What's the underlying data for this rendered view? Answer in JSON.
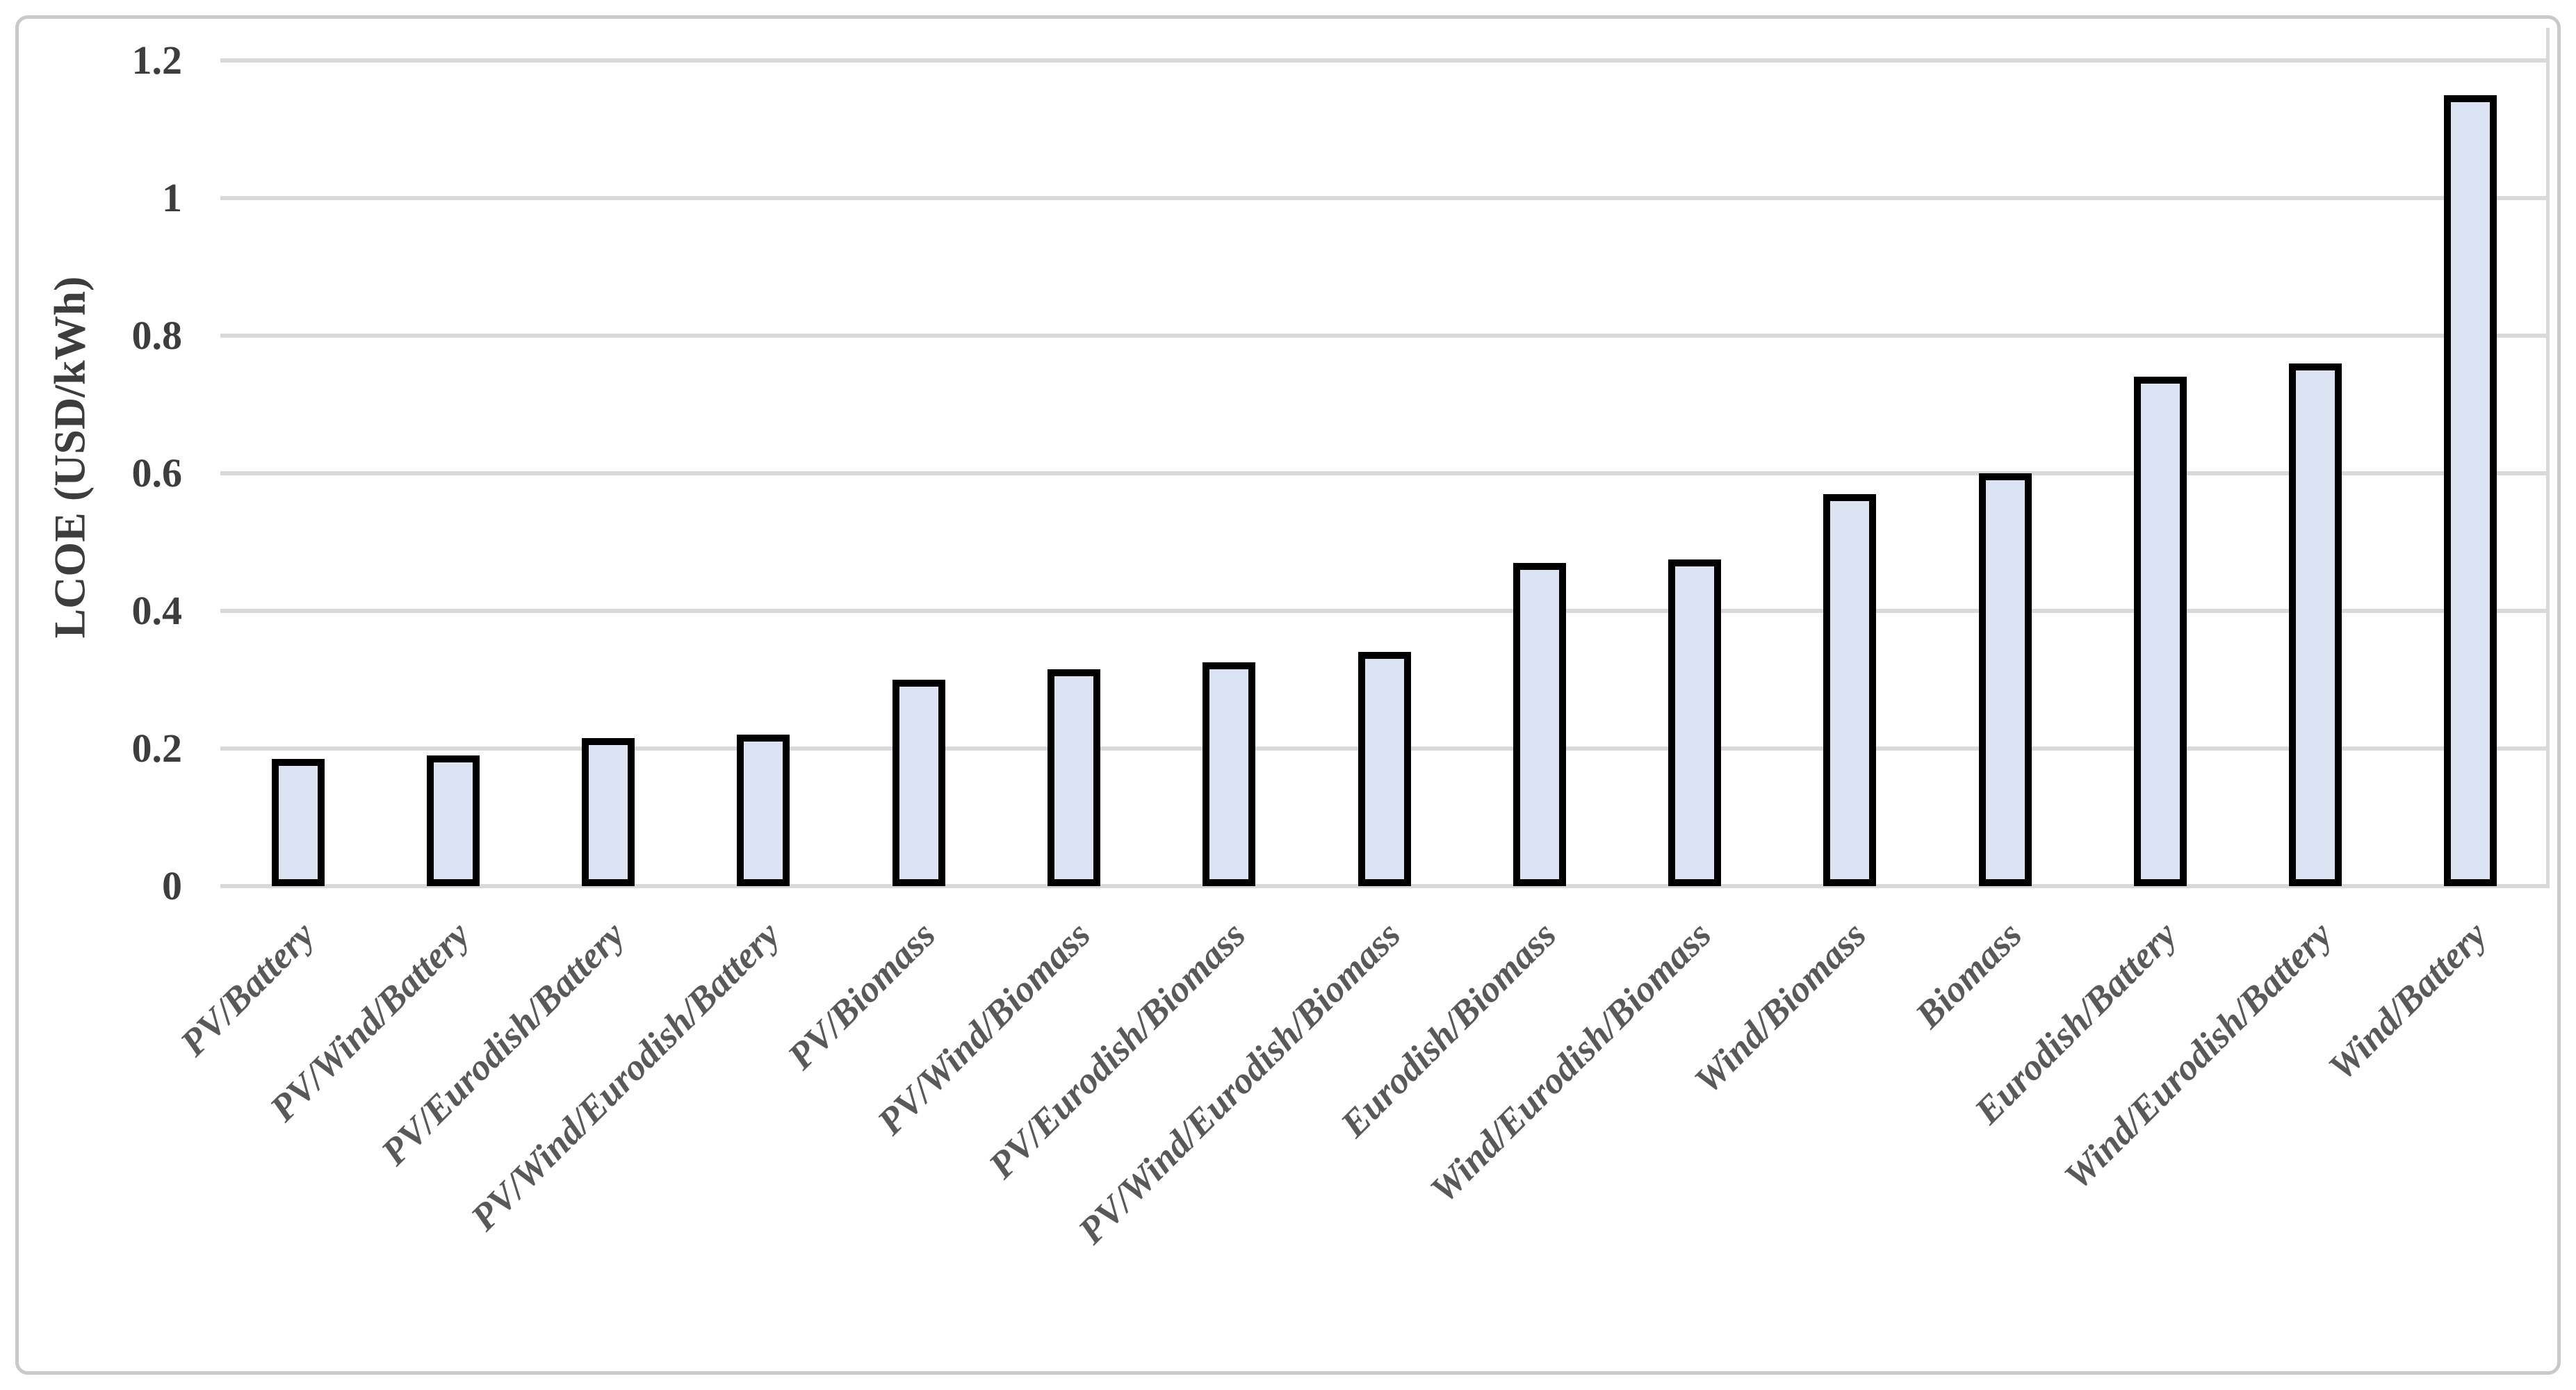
{
  "chart_data": {
    "type": "bar",
    "title": "",
    "xlabel": "",
    "ylabel": "LCOE (USD/kWh)",
    "categories": [
      "PV/Battery",
      "PV/Wind/Battery",
      "PV/Eurodish/Battery",
      "PV/Wind/Eurodish/Battery",
      "PV/Biomass",
      "PV/Wind/Biomass",
      "PV/Eurodish/Biomass",
      "PV/Wind/Eurodish/Biomass",
      "Eurodish/Biomass",
      "Wind/Eurodish/Biomass",
      "Wind/Biomass",
      "Biomass",
      "Eurodish/Battery",
      "Wind/Eurodish/Battery",
      "Wind/Battery"
    ],
    "values": [
      0.185,
      0.19,
      0.215,
      0.22,
      0.3,
      0.315,
      0.325,
      0.34,
      0.47,
      0.475,
      0.57,
      0.6,
      0.74,
      0.76,
      1.15
    ],
    "ylim": [
      0,
      1.25
    ],
    "yticks": [
      0,
      0.2,
      0.4,
      0.6,
      0.8,
      1,
      1.2
    ],
    "ytick_labels": [
      "0",
      "0.2",
      "0.4",
      "0.6",
      "0.8",
      "1",
      "1.2"
    ],
    "grid": "horizontal",
    "legend_position": "none",
    "bar_fill_color": "#dce3f2",
    "bar_border_color": "#000000",
    "gridline_color": "#d9d9d9",
    "axis_text_color": "#3d3d3d",
    "category_label_color": "#595959"
  }
}
